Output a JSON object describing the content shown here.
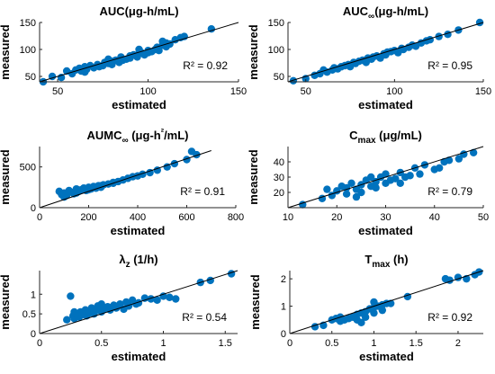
{
  "figure": {
    "marker_color": "#0072BD",
    "line_color": "#000000"
  },
  "chart_data": [
    {
      "type": "scatter",
      "title": "AUC(μg-h/mL)",
      "xlabel": "estimated",
      "ylabel": "measured",
      "xlim": [
        40,
        150
      ],
      "ylim": [
        40,
        150
      ],
      "xticks": [
        "50",
        "100",
        "150"
      ],
      "yticks": [
        "50",
        "100",
        "150"
      ],
      "annotation": "R² = 0.92",
      "fit_line": {
        "x": [
          40,
          150
        ],
        "y": [
          40,
          150
        ]
      },
      "points": {
        "x": [
          42,
          52,
          55,
          58,
          60,
          62,
          63,
          65,
          66,
          68,
          70,
          72,
          73,
          75,
          76,
          78,
          80,
          80,
          82,
          84,
          85,
          86,
          88,
          90,
          90,
          92,
          94,
          95,
          96,
          98,
          100,
          100,
          102,
          104,
          105,
          106,
          108,
          110,
          110,
          112,
          115,
          118,
          120,
          135,
          47,
          65,
          78,
          95,
          108
        ],
        "y": [
          40,
          48,
          60,
          55,
          62,
          65,
          60,
          68,
          63,
          70,
          66,
          72,
          68,
          70,
          76,
          74,
          78,
          72,
          80,
          76,
          86,
          80,
          82,
          88,
          84,
          90,
          86,
          92,
          95,
          90,
          98,
          94,
          96,
          100,
          104,
          98,
          108,
          105,
          112,
          110,
          118,
          122,
          124,
          138,
          50,
          58,
          82,
          100,
          115
        ]
      }
    },
    {
      "type": "scatter",
      "title": "AUC∞(μg-h/mL)",
      "xlabel": "estimated",
      "ylabel": "measured",
      "xlim": [
        40,
        150
      ],
      "ylim": [
        40,
        150
      ],
      "xticks": [
        "50",
        "100",
        "150"
      ],
      "yticks": [
        "50",
        "100",
        "150"
      ],
      "annotation": "R² = 0.95",
      "fit_line": {
        "x": [
          40,
          150
        ],
        "y": [
          40,
          150
        ]
      },
      "points": {
        "x": [
          43,
          50,
          55,
          58,
          60,
          62,
          65,
          66,
          68,
          70,
          72,
          74,
          75,
          77,
          78,
          80,
          82,
          84,
          85,
          87,
          88,
          90,
          92,
          94,
          95,
          96,
          98,
          100,
          102,
          104,
          105,
          108,
          110,
          112,
          115,
          118,
          120,
          125,
          130,
          136,
          148
        ],
        "y": [
          42,
          46,
          52,
          55,
          62,
          58,
          62,
          66,
          64,
          68,
          70,
          72,
          68,
          76,
          74,
          78,
          80,
          76,
          84,
          82,
          86,
          88,
          84,
          92,
          90,
          95,
          96,
          98,
          94,
          102,
          100,
          104,
          108,
          106,
          112,
          116,
          118,
          124,
          128,
          136,
          150
        ]
      }
    },
    {
      "type": "scatter",
      "title": "AUMC∞ (μg-h²/mL)",
      "xlabel": "estimated",
      "ylabel": "measured",
      "xlim": [
        0,
        800
      ],
      "ylim": [
        0,
        750
      ],
      "xticks": [
        "0",
        "200",
        "400",
        "600",
        "800"
      ],
      "yticks": [
        "0",
        "500"
      ],
      "annotation": "R² = 0.91",
      "fit_line": {
        "x": [
          0,
          700
        ],
        "y": [
          0,
          700
        ]
      },
      "points": {
        "x": [
          80,
          90,
          100,
          110,
          120,
          130,
          140,
          150,
          160,
          170,
          180,
          190,
          200,
          210,
          220,
          230,
          240,
          250,
          260,
          280,
          300,
          320,
          340,
          360,
          380,
          400,
          420,
          450,
          480,
          520,
          550,
          600,
          620,
          640,
          100,
          150,
          200,
          250,
          300
        ],
        "y": [
          200,
          160,
          180,
          150,
          210,
          190,
          170,
          230,
          200,
          220,
          240,
          210,
          250,
          230,
          260,
          240,
          270,
          250,
          280,
          290,
          300,
          320,
          340,
          360,
          380,
          390,
          410,
          430,
          460,
          500,
          540,
          590,
          690,
          650,
          130,
          180,
          220,
          270,
          310
        ]
      }
    },
    {
      "type": "scatter",
      "title": "Cmax (μg/mL)",
      "xlabel": "estimated",
      "ylabel": "measured",
      "xlim": [
        10,
        50
      ],
      "ylim": [
        10,
        50
      ],
      "xticks": [
        "10",
        "20",
        "30",
        "40",
        "50"
      ],
      "yticks": [
        "20",
        "30",
        "40"
      ],
      "annotation": "R² = 0.79",
      "fit_line": {
        "x": [
          10,
          50
        ],
        "y": [
          10,
          50
        ]
      },
      "points": {
        "x": [
          13,
          17,
          18,
          19,
          20,
          21,
          22,
          22,
          23,
          24,
          25,
          25,
          26,
          27,
          28,
          28,
          29,
          30,
          30,
          31,
          32,
          33,
          34,
          35,
          36,
          37,
          38,
          40,
          41,
          42,
          43,
          45,
          46,
          48,
          24,
          27,
          33
        ],
        "y": [
          12,
          16,
          22,
          18,
          21,
          24,
          19,
          23,
          26,
          22,
          25,
          20,
          28,
          24,
          27,
          23,
          30,
          26,
          32,
          28,
          29,
          33,
          30,
          31,
          36,
          32,
          38,
          35,
          36,
          40,
          41,
          42,
          45,
          46,
          17,
          30,
          26
        ]
      }
    },
    {
      "type": "scatter",
      "title": "λz (1/h)",
      "xlabel": "estimated",
      "ylabel": "measured",
      "xlim": [
        0,
        1.6
      ],
      "ylim": [
        0,
        1.6
      ],
      "xticks": [
        "0",
        "0.5",
        "1",
        "1.5"
      ],
      "yticks": [
        "0",
        "0.5",
        "1"
      ],
      "annotation": "R² = 0.54",
      "fit_line": {
        "x": [
          0,
          1.6
        ],
        "y": [
          0,
          1.6
        ]
      },
      "points": {
        "x": [
          0.22,
          0.25,
          0.27,
          0.28,
          0.3,
          0.32,
          0.33,
          0.35,
          0.37,
          0.38,
          0.4,
          0.42,
          0.44,
          0.45,
          0.47,
          0.5,
          0.52,
          0.55,
          0.57,
          0.6,
          0.62,
          0.65,
          0.68,
          0.7,
          0.72,
          0.75,
          0.78,
          0.8,
          0.85,
          0.9,
          0.95,
          1.0,
          1.05,
          1.1,
          1.3,
          1.38,
          1.55,
          0.28,
          0.5
        ],
        "y": [
          0.35,
          0.95,
          0.45,
          0.38,
          0.5,
          0.42,
          0.55,
          0.48,
          0.6,
          0.45,
          0.52,
          0.65,
          0.5,
          0.58,
          0.7,
          0.55,
          0.62,
          0.68,
          0.6,
          0.72,
          0.65,
          0.75,
          0.62,
          0.8,
          0.7,
          0.85,
          0.75,
          0.78,
          0.9,
          0.88,
          0.85,
          0.95,
          0.92,
          0.88,
          1.3,
          1.35,
          1.52,
          0.55,
          0.75
        ]
      }
    },
    {
      "type": "scatter",
      "title": "Tmax (h)",
      "xlabel": "estimated",
      "ylabel": "measured",
      "xlim": [
        0,
        2.3
      ],
      "ylim": [
        0,
        2.3
      ],
      "xticks": [
        "0",
        "0.5",
        "1",
        "1.5",
        "2"
      ],
      "yticks": [
        "0",
        "1",
        "2"
      ],
      "annotation": "R² = 0.92",
      "fit_line": {
        "x": [
          0,
          2.3
        ],
        "y": [
          0,
          2.3
        ]
      },
      "points": {
        "x": [
          0.3,
          0.4,
          0.5,
          0.55,
          0.6,
          0.6,
          0.65,
          0.7,
          0.75,
          0.8,
          0.8,
          0.85,
          0.9,
          0.9,
          0.95,
          1.0,
          1.0,
          1.05,
          1.1,
          1.1,
          1.15,
          1.2,
          1.4,
          1.85,
          1.9,
          2.0,
          2.1,
          2.2,
          2.25,
          0.85,
          1.0
        ],
        "y": [
          0.25,
          0.3,
          0.5,
          0.55,
          0.45,
          0.6,
          0.5,
          0.55,
          0.6,
          0.5,
          0.7,
          0.75,
          0.6,
          0.8,
          0.9,
          0.95,
          0.75,
          1.0,
          1.05,
          0.85,
          1.1,
          1.1,
          1.35,
          2.0,
          1.95,
          2.05,
          2.0,
          2.15,
          2.25,
          0.4,
          1.15
        ]
      }
    }
  ]
}
